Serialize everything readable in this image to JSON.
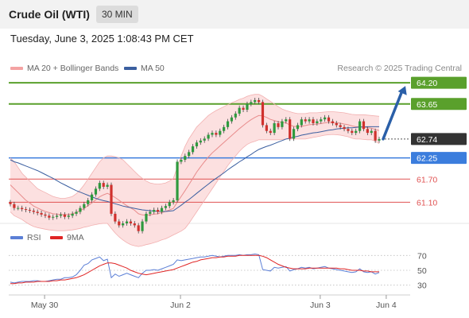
{
  "header": {
    "title": "Crude Oil (WTI)",
    "timeframe": "30 MIN"
  },
  "datetime": "Tuesday, June 3, 2025 1:08:43 PM CET",
  "legend": [
    {
      "label": "MA 20 + Bollinger Bands",
      "color": "#f4a3a3"
    },
    {
      "label": "MA 50",
      "color": "#3b5fa0"
    }
  ],
  "credit": "Research © 2025 Trading Central",
  "chart_data": {
    "type": "candlestick",
    "price_ylim": [
      60.55,
      64.45
    ],
    "levels": [
      {
        "label": "64.20",
        "value": 64.2,
        "kind": "resistance-target",
        "color": "#5aa02c"
      },
      {
        "label": "63.65",
        "value": 63.65,
        "kind": "resistance",
        "color": "#5aa02c"
      },
      {
        "label": "62.74",
        "value": 62.74,
        "kind": "last-price",
        "color": "#333333"
      },
      {
        "label": "62.25",
        "value": 62.25,
        "kind": "pivot",
        "color": "#3b7ddd"
      },
      {
        "label": "61.70",
        "value": 61.7,
        "kind": "support",
        "color": "#e05252"
      },
      {
        "label": "61.10",
        "value": 61.1,
        "kind": "support",
        "color": "#e05252"
      }
    ],
    "forecast_arrow": {
      "from": 62.74,
      "to": 64.2,
      "color": "#2a5fa8"
    },
    "close": [
      61.05,
      60.95,
      60.95,
      60.92,
      60.9,
      60.88,
      60.85,
      60.82,
      60.78,
      60.75,
      60.7,
      60.72,
      60.75,
      60.78,
      60.72,
      60.75,
      60.8,
      60.85,
      60.95,
      61.05,
      61.15,
      61.3,
      61.45,
      61.6,
      61.5,
      61.55,
      60.8,
      60.6,
      60.5,
      60.55,
      60.6,
      60.55,
      60.5,
      60.35,
      60.6,
      60.8,
      60.85,
      60.9,
      60.85,
      60.95,
      61.0,
      61.1,
      61.15,
      62.15,
      62.2,
      62.3,
      62.4,
      62.55,
      62.65,
      62.7,
      62.75,
      62.85,
      62.9,
      62.85,
      62.95,
      63.05,
      63.2,
      63.3,
      63.4,
      63.55,
      63.5,
      63.65,
      63.7,
      63.75,
      63.7,
      63.1,
      62.95,
      62.9,
      63.15,
      63.05,
      63.2,
      63.25,
      62.75,
      63.0,
      63.1,
      63.25,
      63.2,
      63.25,
      63.15,
      63.2,
      63.25,
      63.3,
      63.2,
      63.15,
      63.1,
      63.05,
      63.0,
      62.95,
      62.9,
      62.95,
      63.2,
      63.0,
      62.9,
      62.95,
      62.7,
      62.74
    ],
    "ma20": [
      61.55,
      61.45,
      61.35,
      61.25,
      61.15,
      61.08,
      61.0,
      60.95,
      60.9,
      60.86,
      60.83,
      60.8,
      60.79,
      60.78,
      60.78,
      60.78,
      60.8,
      60.83,
      60.88,
      60.94,
      61.01,
      61.08,
      61.16,
      61.24,
      61.29,
      61.33,
      61.28,
      61.22,
      61.15,
      61.08,
      61.01,
      60.95,
      60.89,
      60.8,
      60.77,
      60.76,
      60.77,
      60.79,
      60.8,
      60.83,
      60.86,
      60.9,
      60.94,
      61.1,
      61.25,
      61.4,
      61.56,
      61.72,
      61.88,
      62.02,
      62.15,
      62.27,
      62.38,
      62.47,
      62.56,
      62.65,
      62.74,
      62.83,
      62.92,
      63.01,
      63.09,
      63.17,
      63.24,
      63.3,
      63.35,
      63.34,
      63.3,
      63.25,
      63.22,
      63.19,
      63.17,
      63.16,
      63.1,
      63.07,
      63.06,
      63.07,
      63.09,
      63.11,
      63.12,
      63.13,
      63.14,
      63.16,
      63.17,
      63.17,
      63.16,
      63.15,
      63.13,
      63.11,
      63.08,
      63.06,
      63.06,
      63.05,
      63.03,
      63.02,
      62.99,
      62.96
    ],
    "bb_upper": [
      62.25,
      62.15,
      62.0,
      61.85,
      61.75,
      61.65,
      61.55,
      61.45,
      61.4,
      61.35,
      61.3,
      61.25,
      61.22,
      61.2,
      61.2,
      61.22,
      61.25,
      61.32,
      61.42,
      61.55,
      61.7,
      61.85,
      62.0,
      62.15,
      62.25,
      62.3,
      62.3,
      62.28,
      62.25,
      62.2,
      62.1,
      62.0,
      61.9,
      61.8,
      61.72,
      61.65,
      61.6,
      61.58,
      61.57,
      61.58,
      61.6,
      61.65,
      61.72,
      62.0,
      62.3,
      62.55,
      62.75,
      62.9,
      63.05,
      63.15,
      63.25,
      63.35,
      63.42,
      63.48,
      63.53,
      63.58,
      63.63,
      63.68,
      63.72,
      63.77,
      63.8,
      63.85,
      63.88,
      63.9,
      63.9,
      63.85,
      63.78,
      63.72,
      63.65,
      63.58,
      63.52,
      63.48,
      63.45,
      63.42,
      63.4,
      63.4,
      63.4,
      63.42,
      63.42,
      63.42,
      63.43,
      63.44,
      63.45,
      63.45,
      63.44,
      63.43,
      63.42,
      63.4,
      63.38,
      63.37,
      63.37,
      63.37,
      63.36,
      63.35,
      63.34,
      63.33
    ],
    "bb_lower": [
      60.85,
      60.75,
      60.7,
      60.65,
      60.58,
      60.52,
      60.47,
      60.44,
      60.42,
      60.4,
      60.38,
      60.37,
      60.36,
      60.36,
      60.36,
      60.37,
      60.38,
      60.4,
      60.42,
      60.45,
      60.47,
      60.5,
      60.52,
      60.54,
      60.55,
      60.55,
      60.42,
      60.3,
      60.2,
      60.12,
      60.05,
      60.0,
      59.97,
      59.95,
      59.97,
      60.0,
      60.02,
      60.05,
      60.08,
      60.12,
      60.15,
      60.2,
      60.25,
      60.3,
      60.35,
      60.42,
      60.55,
      60.7,
      60.85,
      61.0,
      61.15,
      61.3,
      61.45,
      61.6,
      61.75,
      61.9,
      62.05,
      62.18,
      62.3,
      62.42,
      62.52,
      62.6,
      62.65,
      62.68,
      62.72,
      62.72,
      62.72,
      62.72,
      62.72,
      62.72,
      62.73,
      62.74,
      62.74,
      62.74,
      62.74,
      62.74,
      62.74,
      62.76,
      62.78,
      62.8,
      62.82,
      62.84,
      62.85,
      62.86,
      62.85,
      62.84,
      62.82,
      62.8,
      62.76,
      62.74,
      62.74,
      62.73,
      62.72,
      62.72,
      62.68,
      62.62
    ],
    "ma50": [
      62.2,
      62.15,
      62.12,
      62.08,
      62.04,
      62.0,
      61.96,
      61.92,
      61.87,
      61.82,
      61.77,
      61.72,
      61.66,
      61.6,
      61.55,
      61.5,
      61.45,
      61.4,
      61.36,
      61.32,
      61.28,
      61.24,
      61.2,
      61.17,
      61.14,
      61.12,
      61.09,
      61.06,
      61.03,
      61.0,
      60.98,
      60.96,
      60.94,
      60.92,
      60.9,
      60.89,
      60.88,
      60.87,
      60.86,
      60.86,
      60.86,
      60.87,
      60.88,
      60.95,
      61.02,
      61.1,
      61.17,
      61.25,
      61.33,
      61.41,
      61.49,
      61.57,
      61.65,
      61.72,
      61.79,
      61.86,
      61.94,
      62.01,
      62.08,
      62.15,
      62.21,
      62.28,
      62.34,
      62.41,
      62.47,
      62.51,
      62.55,
      62.58,
      62.62,
      62.66,
      62.7,
      62.74,
      62.76,
      62.79,
      62.81,
      62.84,
      62.86,
      62.88,
      62.9,
      62.91,
      62.93,
      62.95,
      62.97,
      62.98,
      63.0,
      63.01,
      63.02,
      63.03,
      63.03,
      63.04,
      63.05,
      63.05,
      63.06,
      63.06,
      63.06,
      63.06
    ],
    "x_ticks": [
      {
        "label": "May 30",
        "index": 8
      },
      {
        "label": "Jun 2",
        "index": 43
      },
      {
        "label": "Jun 3",
        "index": 79
      },
      {
        "label": "Jun 4",
        "index": 96
      }
    ],
    "rsi": {
      "legend": [
        {
          "label": "RSI",
          "color": "#5b7fd6"
        },
        {
          "label": "9MA",
          "color": "#e02424"
        }
      ],
      "ylim": [
        20,
        80
      ],
      "ticks": [
        70,
        50,
        30
      ],
      "rsi": [
        34,
        33,
        34,
        35,
        35,
        35,
        36,
        36,
        35,
        35,
        36,
        37,
        38,
        38,
        40,
        40,
        41,
        44,
        50,
        57,
        59,
        64,
        66,
        68,
        63,
        65,
        40,
        45,
        42,
        44,
        46,
        44,
        42,
        40,
        46,
        50,
        50,
        51,
        50,
        52,
        54,
        56,
        58,
        64,
        63,
        64,
        65,
        66,
        67,
        68,
        68,
        69,
        70,
        69,
        68,
        69,
        70,
        70,
        70,
        71,
        70,
        71,
        71,
        72,
        71,
        51,
        50,
        49,
        54,
        53,
        54,
        55,
        49,
        51,
        52,
        54,
        53,
        54,
        52,
        53,
        54,
        55,
        53,
        52,
        51,
        50,
        49,
        48,
        47,
        48,
        52,
        48,
        47,
        48,
        45,
        47
      ],
      "ma9": [
        32,
        32,
        33,
        33,
        34,
        34,
        34,
        35,
        35,
        35,
        35,
        36,
        36,
        37,
        37,
        38,
        39,
        40,
        42,
        44,
        47,
        50,
        53,
        56,
        58,
        60,
        60,
        59,
        57,
        55,
        53,
        50,
        48,
        46,
        45,
        44,
        45,
        46,
        47,
        48,
        49,
        50,
        51,
        53,
        55,
        57,
        59,
        61,
        62,
        64,
        65,
        66,
        67,
        67,
        68,
        68,
        69,
        69,
        69,
        70,
        70,
        70,
        70,
        70,
        70,
        69,
        67,
        64,
        61,
        58,
        56,
        54,
        53,
        52,
        52,
        52,
        52,
        53,
        53,
        53,
        53,
        53,
        53,
        53,
        53,
        52,
        52,
        51,
        50,
        50,
        50,
        49,
        49,
        48,
        48,
        48
      ]
    }
  }
}
